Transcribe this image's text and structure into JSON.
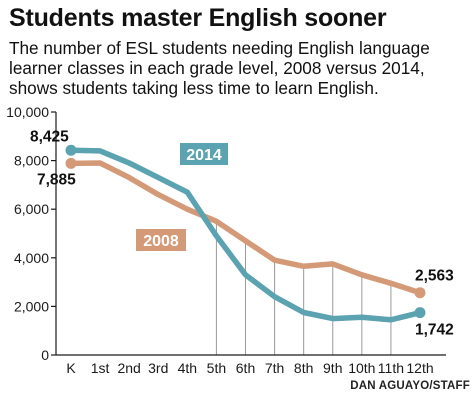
{
  "header": {
    "title": "Students master English sooner",
    "subtitle": "The number of ESL students needing English language learner classes in each grade level, 2008 versus 2014, shows students taking less time to learn English."
  },
  "credit": "DAN AGUAYO/STAFF",
  "colors": {
    "series_2008": "#d49a78",
    "series_2014": "#5ba3b0",
    "axis": "#1a1a1a",
    "gridline": "#9a9a9a"
  },
  "chart_data": {
    "type": "line",
    "title": "Students master English sooner",
    "xlabel": "",
    "ylabel": "",
    "ylim": [
      0,
      10000
    ],
    "yticks": [
      0,
      2000,
      4000,
      6000,
      8000,
      10000
    ],
    "ytick_labels": [
      "0",
      "2,000",
      "4,000",
      "6,000",
      "8,000",
      "10,000"
    ],
    "categories": [
      "K",
      "1st",
      "2nd",
      "3rd",
      "4th",
      "5th",
      "6th",
      "7th",
      "8th",
      "9th",
      "10th",
      "11th",
      "12th"
    ],
    "grid": "vertical drop lines at 5th through 11th grade",
    "series": [
      {
        "name": "2014",
        "values": [
          8425,
          8400,
          7900,
          7300,
          6700,
          4900,
          3300,
          2400,
          1750,
          1500,
          1550,
          1450,
          1742
        ],
        "endpoint_labels": {
          "first": "8,425",
          "last": "1,742"
        }
      },
      {
        "name": "2008",
        "values": [
          7885,
          7900,
          7300,
          6600,
          6000,
          5500,
          4700,
          3900,
          3650,
          3750,
          3300,
          2950,
          2563
        ],
        "endpoint_labels": {
          "first": "7,885",
          "last": "2,563"
        }
      }
    ]
  }
}
